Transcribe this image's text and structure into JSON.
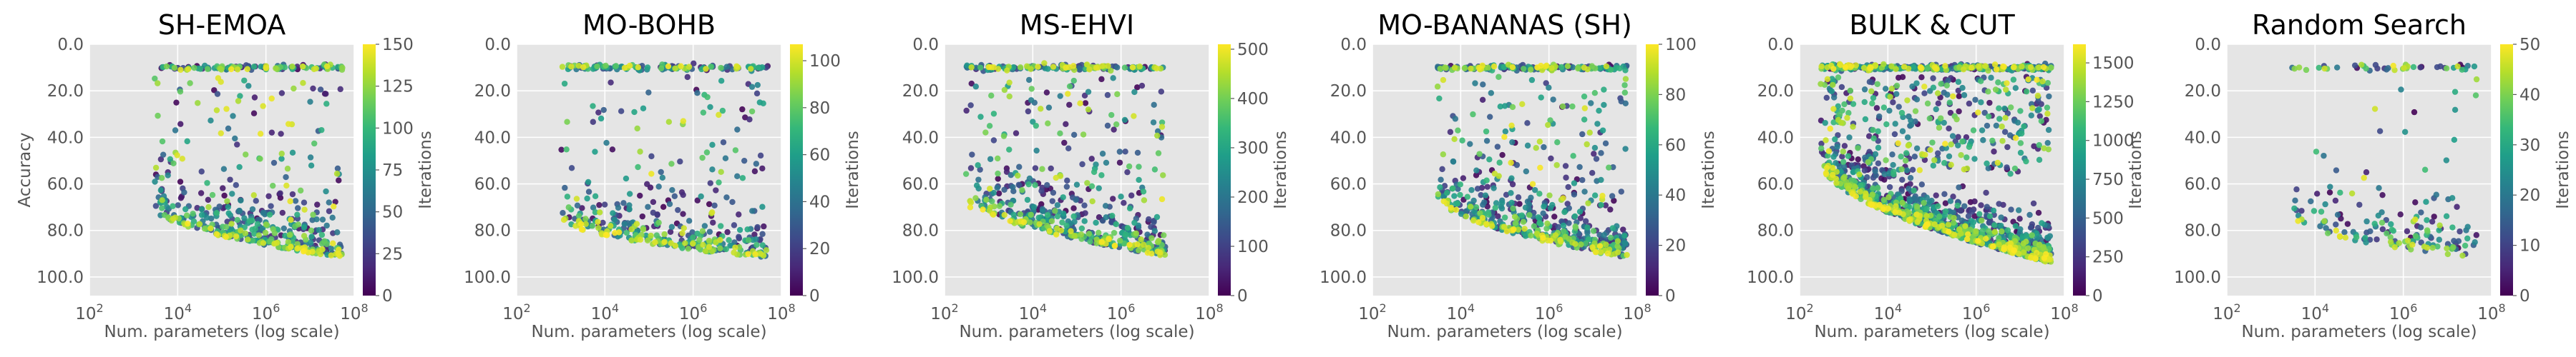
{
  "figure": {
    "colormap": [
      "#440154",
      "#482878",
      "#3e4989",
      "#31688e",
      "#26828e",
      "#1f9e89",
      "#35b779",
      "#6ece58",
      "#b5de2b",
      "#fde725"
    ],
    "panel_background": "#e5e5e5",
    "grid_color": "#ffffff"
  },
  "chart_data": [
    {
      "type": "scatter",
      "title": "SH-EMOA",
      "xlabel": "Num. parameters (log scale)",
      "ylabel": "Accuracy",
      "xscale": "log",
      "xlim": [
        100,
        100000000
      ],
      "ylim": [
        0,
        108
      ],
      "y_inverted": true,
      "x_tick_labels": [
        {
          "base": "10",
          "exp": "2"
        },
        {
          "base": "10",
          "exp": "4"
        },
        {
          "base": "10",
          "exp": "6"
        },
        {
          "base": "10",
          "exp": "8"
        }
      ],
      "y_tick_labels": [
        "0.0",
        "20.0",
        "40.0",
        "60.0",
        "80.0",
        "100.0"
      ],
      "colorbar": {
        "label": "Iterations",
        "range": [
          0,
          150
        ],
        "ticks": [
          "0",
          "25",
          "50",
          "75",
          "100",
          "125",
          "150"
        ]
      },
      "points_summary": {
        "x_range": [
          3000,
          60000000
        ],
        "accuracy_band_top": 10,
        "frontier_from": 70,
        "frontier_to": 92,
        "approx_points": 550
      }
    },
    {
      "type": "scatter",
      "title": "MO-BOHB",
      "xlabel": "Num. parameters (log scale)",
      "ylabel": "",
      "xscale": "log",
      "xlim": [
        100,
        100000000
      ],
      "ylim": [
        0,
        108
      ],
      "y_inverted": true,
      "x_tick_labels": [
        {
          "base": "10",
          "exp": "2"
        },
        {
          "base": "10",
          "exp": "4"
        },
        {
          "base": "10",
          "exp": "6"
        },
        {
          "base": "10",
          "exp": "8"
        }
      ],
      "y_tick_labels": [
        "0.0",
        "20.0",
        "40.0",
        "60.0",
        "80.0",
        "100.0"
      ],
      "colorbar": {
        "label": "Iterations",
        "range": [
          0,
          107
        ],
        "ticks": [
          "0",
          "20",
          "40",
          "60",
          "80",
          "100"
        ]
      },
      "points_summary": {
        "x_range": [
          1000,
          50000000
        ],
        "accuracy_band_top": 10,
        "frontier_from": 75,
        "frontier_to": 92,
        "approx_points": 500
      }
    },
    {
      "type": "scatter",
      "title": "MS-EHVI",
      "xlabel": "Num. parameters (log scale)",
      "ylabel": "",
      "xscale": "log",
      "xlim": [
        100,
        100000000
      ],
      "ylim": [
        0,
        108
      ],
      "y_inverted": true,
      "x_tick_labels": [
        {
          "base": "10",
          "exp": "2"
        },
        {
          "base": "10",
          "exp": "4"
        },
        {
          "base": "10",
          "exp": "6"
        },
        {
          "base": "10",
          "exp": "8"
        }
      ],
      "y_tick_labels": [
        "0.0",
        "20.0",
        "40.0",
        "60.0",
        "80.0",
        "100.0"
      ],
      "colorbar": {
        "label": "Iterations",
        "range": [
          0,
          510
        ],
        "ticks": [
          "0",
          "100",
          "200",
          "300",
          "400",
          "500"
        ]
      },
      "points_summary": {
        "x_range": [
          300,
          10000000
        ],
        "accuracy_band_top": 10,
        "frontier_from": 65,
        "frontier_to": 91,
        "approx_points": 650
      }
    },
    {
      "type": "scatter",
      "title": "MO-BANANAS (SH)",
      "xlabel": "Num. parameters (log scale)",
      "ylabel": "",
      "xscale": "log",
      "xlim": [
        100,
        100000000
      ],
      "ylim": [
        0,
        108
      ],
      "y_inverted": true,
      "x_tick_labels": [
        {
          "base": "10",
          "exp": "2"
        },
        {
          "base": "10",
          "exp": "4"
        },
        {
          "base": "10",
          "exp": "6"
        },
        {
          "base": "10",
          "exp": "8"
        }
      ],
      "y_tick_labels": [
        "0.0",
        "20.0",
        "40.0",
        "60.0",
        "80.0",
        "100.0"
      ],
      "colorbar": {
        "label": "Iterations",
        "range": [
          0,
          100
        ],
        "ticks": [
          "0",
          "20",
          "40",
          "60",
          "80",
          "100"
        ]
      },
      "points_summary": {
        "x_range": [
          3000,
          60000000
        ],
        "accuracy_band_top": 10,
        "frontier_from": 65,
        "frontier_to": 92,
        "approx_points": 700
      }
    },
    {
      "type": "scatter",
      "title": "BULK & CUT",
      "xlabel": "Num. parameters (log scale)",
      "ylabel": "",
      "xscale": "log",
      "xlim": [
        100,
        100000000
      ],
      "ylim": [
        0,
        108
      ],
      "y_inverted": true,
      "x_tick_labels": [
        {
          "base": "10",
          "exp": "2"
        },
        {
          "base": "10",
          "exp": "4"
        },
        {
          "base": "10",
          "exp": "6"
        },
        {
          "base": "10",
          "exp": "8"
        }
      ],
      "y_tick_labels": [
        "0.0",
        "20.0",
        "40.0",
        "60.0",
        "80.0",
        "100.0"
      ],
      "colorbar": {
        "label": "Iterations",
        "range": [
          0,
          1620
        ],
        "ticks": [
          "0",
          "250",
          "500",
          "750",
          "1000",
          "1250",
          "1500"
        ]
      },
      "points_summary": {
        "x_range": [
          300,
          50000000
        ],
        "accuracy_band_top": 10,
        "frontier_from": 50,
        "frontier_to": 94,
        "approx_points": 1600
      }
    },
    {
      "type": "scatter",
      "title": "Random Search",
      "xlabel": "Num. parameters (log scale)",
      "ylabel": "",
      "xscale": "log",
      "xlim": [
        100,
        100000000
      ],
      "ylim": [
        0,
        108
      ],
      "y_inverted": true,
      "x_tick_labels": [
        {
          "base": "10",
          "exp": "2"
        },
        {
          "base": "10",
          "exp": "4"
        },
        {
          "base": "10",
          "exp": "6"
        },
        {
          "base": "10",
          "exp": "8"
        }
      ],
      "y_tick_labels": [
        "0.0",
        "20.0",
        "40.0",
        "60.0",
        "80.0",
        "100.0"
      ],
      "colorbar": {
        "label": "Iterations",
        "range": [
          0,
          50
        ],
        "ticks": [
          "0",
          "10",
          "20",
          "30",
          "40",
          "50"
        ]
      },
      "points_summary": {
        "x_range": [
          3000,
          50000000
        ],
        "accuracy_band_top": 10,
        "frontier_from": 75,
        "frontier_to": 92,
        "approx_points": 200
      }
    }
  ]
}
